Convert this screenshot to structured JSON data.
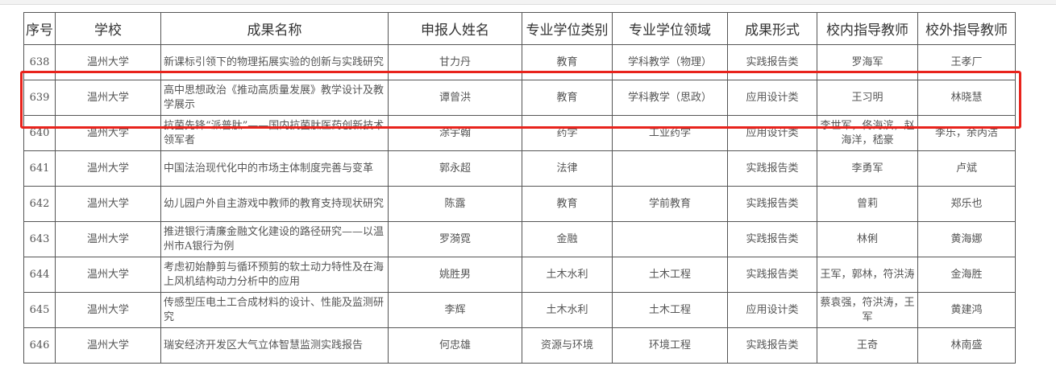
{
  "headers": [
    "序号",
    "学校",
    "成果名称",
    "申报人姓名",
    "专业学位类别",
    "专业学位领域",
    "成果形式",
    "校内指导教师",
    "校外指导教师"
  ],
  "rows": [
    {
      "no": "638",
      "school": "温州大学",
      "title": "新课标引领下的物理拓展实验的创新与实践研究",
      "applicant": "甘力丹",
      "category": "教育",
      "field": "学科教学（物理）",
      "form": "实践报告类",
      "inner": "罗海军",
      "outer": "王孝厂"
    },
    {
      "no": "639",
      "school": "温州大学",
      "title": "高中思想政治《推动高质量发展》教学设计及教学展示",
      "applicant": "谭曾洪",
      "category": "教育",
      "field": "学科教学（思政）",
      "form": "应用设计类",
      "inner": "王习明",
      "outer": "林晓慧"
    },
    {
      "no": "640",
      "school": "温州大学",
      "title": "抗菌先锋“派普肽”——国内抗菌肽医药创新技术领军者",
      "applicant": "涂宇翰",
      "category": "药学",
      "field": "工业药学",
      "form": "应用设计类",
      "inner": "李世军，佟海滨，赵海洋，嵇豪",
      "outer": "李乐，余丙洁"
    },
    {
      "no": "641",
      "school": "温州大学",
      "title": "中国法治现代化中的市场主体制度完善与变革",
      "applicant": "郭永超",
      "category": "法律",
      "field": "",
      "form": "实践报告类",
      "inner": "李勇军",
      "outer": "卢斌"
    },
    {
      "no": "642",
      "school": "温州大学",
      "title": "幼儿园户外自主游戏中教师的教育支持现状研究",
      "applicant": "陈露",
      "category": "教育",
      "field": "学前教育",
      "form": "实践报告类",
      "inner": "曾莉",
      "outer": "郑乐也"
    },
    {
      "no": "643",
      "school": "温州大学",
      "title": "推进银行清廉金融文化建设的路径研究——以温州市A银行为例",
      "applicant": "罗漪霓",
      "category": "金融",
      "field": "",
      "form": "实践报告类",
      "inner": "林俐",
      "outer": "黄海娜"
    },
    {
      "no": "644",
      "school": "温州大学",
      "title": "考虑初始静剪与循环预剪的软土动力特性及在海上风机结构动力分析中的应用",
      "applicant": "姚胜男",
      "category": "土木水利",
      "field": "土木工程",
      "form": "实践报告类",
      "inner": "王军，郭林，符洪涛",
      "outer": "金海胜"
    },
    {
      "no": "645",
      "school": "温州大学",
      "title": "传感型压电土工合成材料的设计、性能及监测研究",
      "applicant": "李辉",
      "category": "土木水利",
      "field": "土木工程",
      "form": "应用设计类",
      "inner": "蔡袁强，符洪涛，王军",
      "outer": "黄建鸿"
    },
    {
      "no": "646",
      "school": "温州大学",
      "title": "瑞安经济开发区大气立体智慧监测实践报告",
      "applicant": "何忠雄",
      "category": "资源与环境",
      "field": "环境工程",
      "form": "实践报告类",
      "inner": "王奇",
      "outer": "林南盛"
    }
  ],
  "highlight_color": "#e8231c"
}
